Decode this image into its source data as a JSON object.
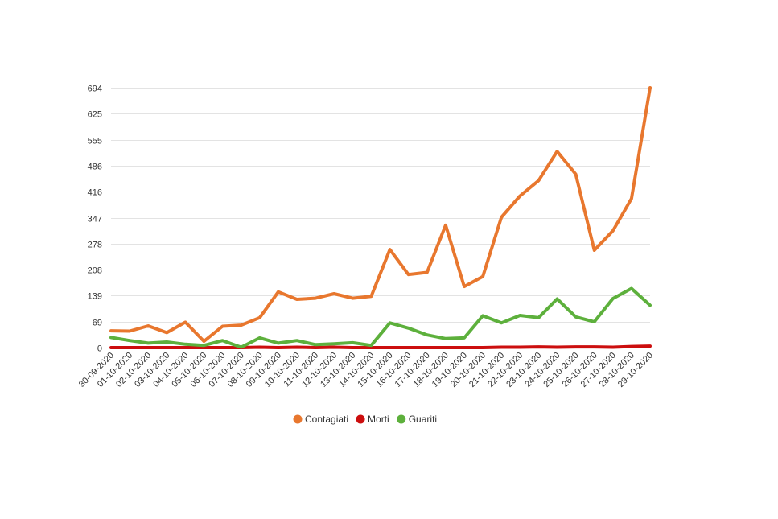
{
  "chart_data": {
    "type": "line",
    "title": "",
    "xlabel": "",
    "ylabel": "",
    "categories": [
      "30-09-2020",
      "01-10-2020",
      "02-10-2020",
      "03-10-2020",
      "04-10-2020",
      "05-10-2020",
      "06-10-2020",
      "07-10-2020",
      "08-10-2020",
      "09-10-2020",
      "10-10-2020",
      "11-10-2020",
      "12-10-2020",
      "13-10-2020",
      "14-10-2020",
      "15-10-2020",
      "16-10-2020",
      "17-10-2020",
      "18-10-2020",
      "19-10-2020",
      "20-10-2020",
      "21-10-2020",
      "22-10-2020",
      "23-10-2020",
      "24-10-2020",
      "25-10-2020",
      "26-10-2020",
      "27-10-2020",
      "28-10-2020",
      "29-10-2020"
    ],
    "yticks": [
      0,
      69,
      139,
      208,
      278,
      347,
      416,
      486,
      555,
      625,
      694
    ],
    "ylim": [
      0,
      694
    ],
    "grid": true,
    "legend_position": "bottom-center",
    "series": [
      {
        "name": "Contagiati",
        "color": "#e8772e",
        "values": [
          45,
          44,
          58,
          40,
          68,
          17,
          57,
          60,
          80,
          149,
          129,
          132,
          144,
          132,
          137,
          262,
          195,
          201,
          327,
          163,
          190,
          348,
          405,
          446,
          524,
          463,
          260,
          312,
          398,
          694
        ]
      },
      {
        "name": "Morti",
        "color": "#cc0e0e",
        "values": [
          0,
          0,
          0,
          0,
          0,
          0,
          0,
          0,
          1,
          0,
          1,
          0,
          1,
          0,
          0,
          0,
          0,
          0,
          0,
          0,
          0,
          1,
          1,
          2,
          1,
          2,
          2,
          1,
          3,
          4
        ]
      },
      {
        "name": "Guariti",
        "color": "#5db03c",
        "values": [
          27,
          19,
          12,
          15,
          9,
          6,
          19,
          1,
          26,
          12,
          19,
          8,
          10,
          13,
          6,
          66,
          52,
          34,
          24,
          26,
          85,
          66,
          86,
          80,
          130,
          82,
          69,
          131,
          158,
          113
        ]
      }
    ]
  }
}
